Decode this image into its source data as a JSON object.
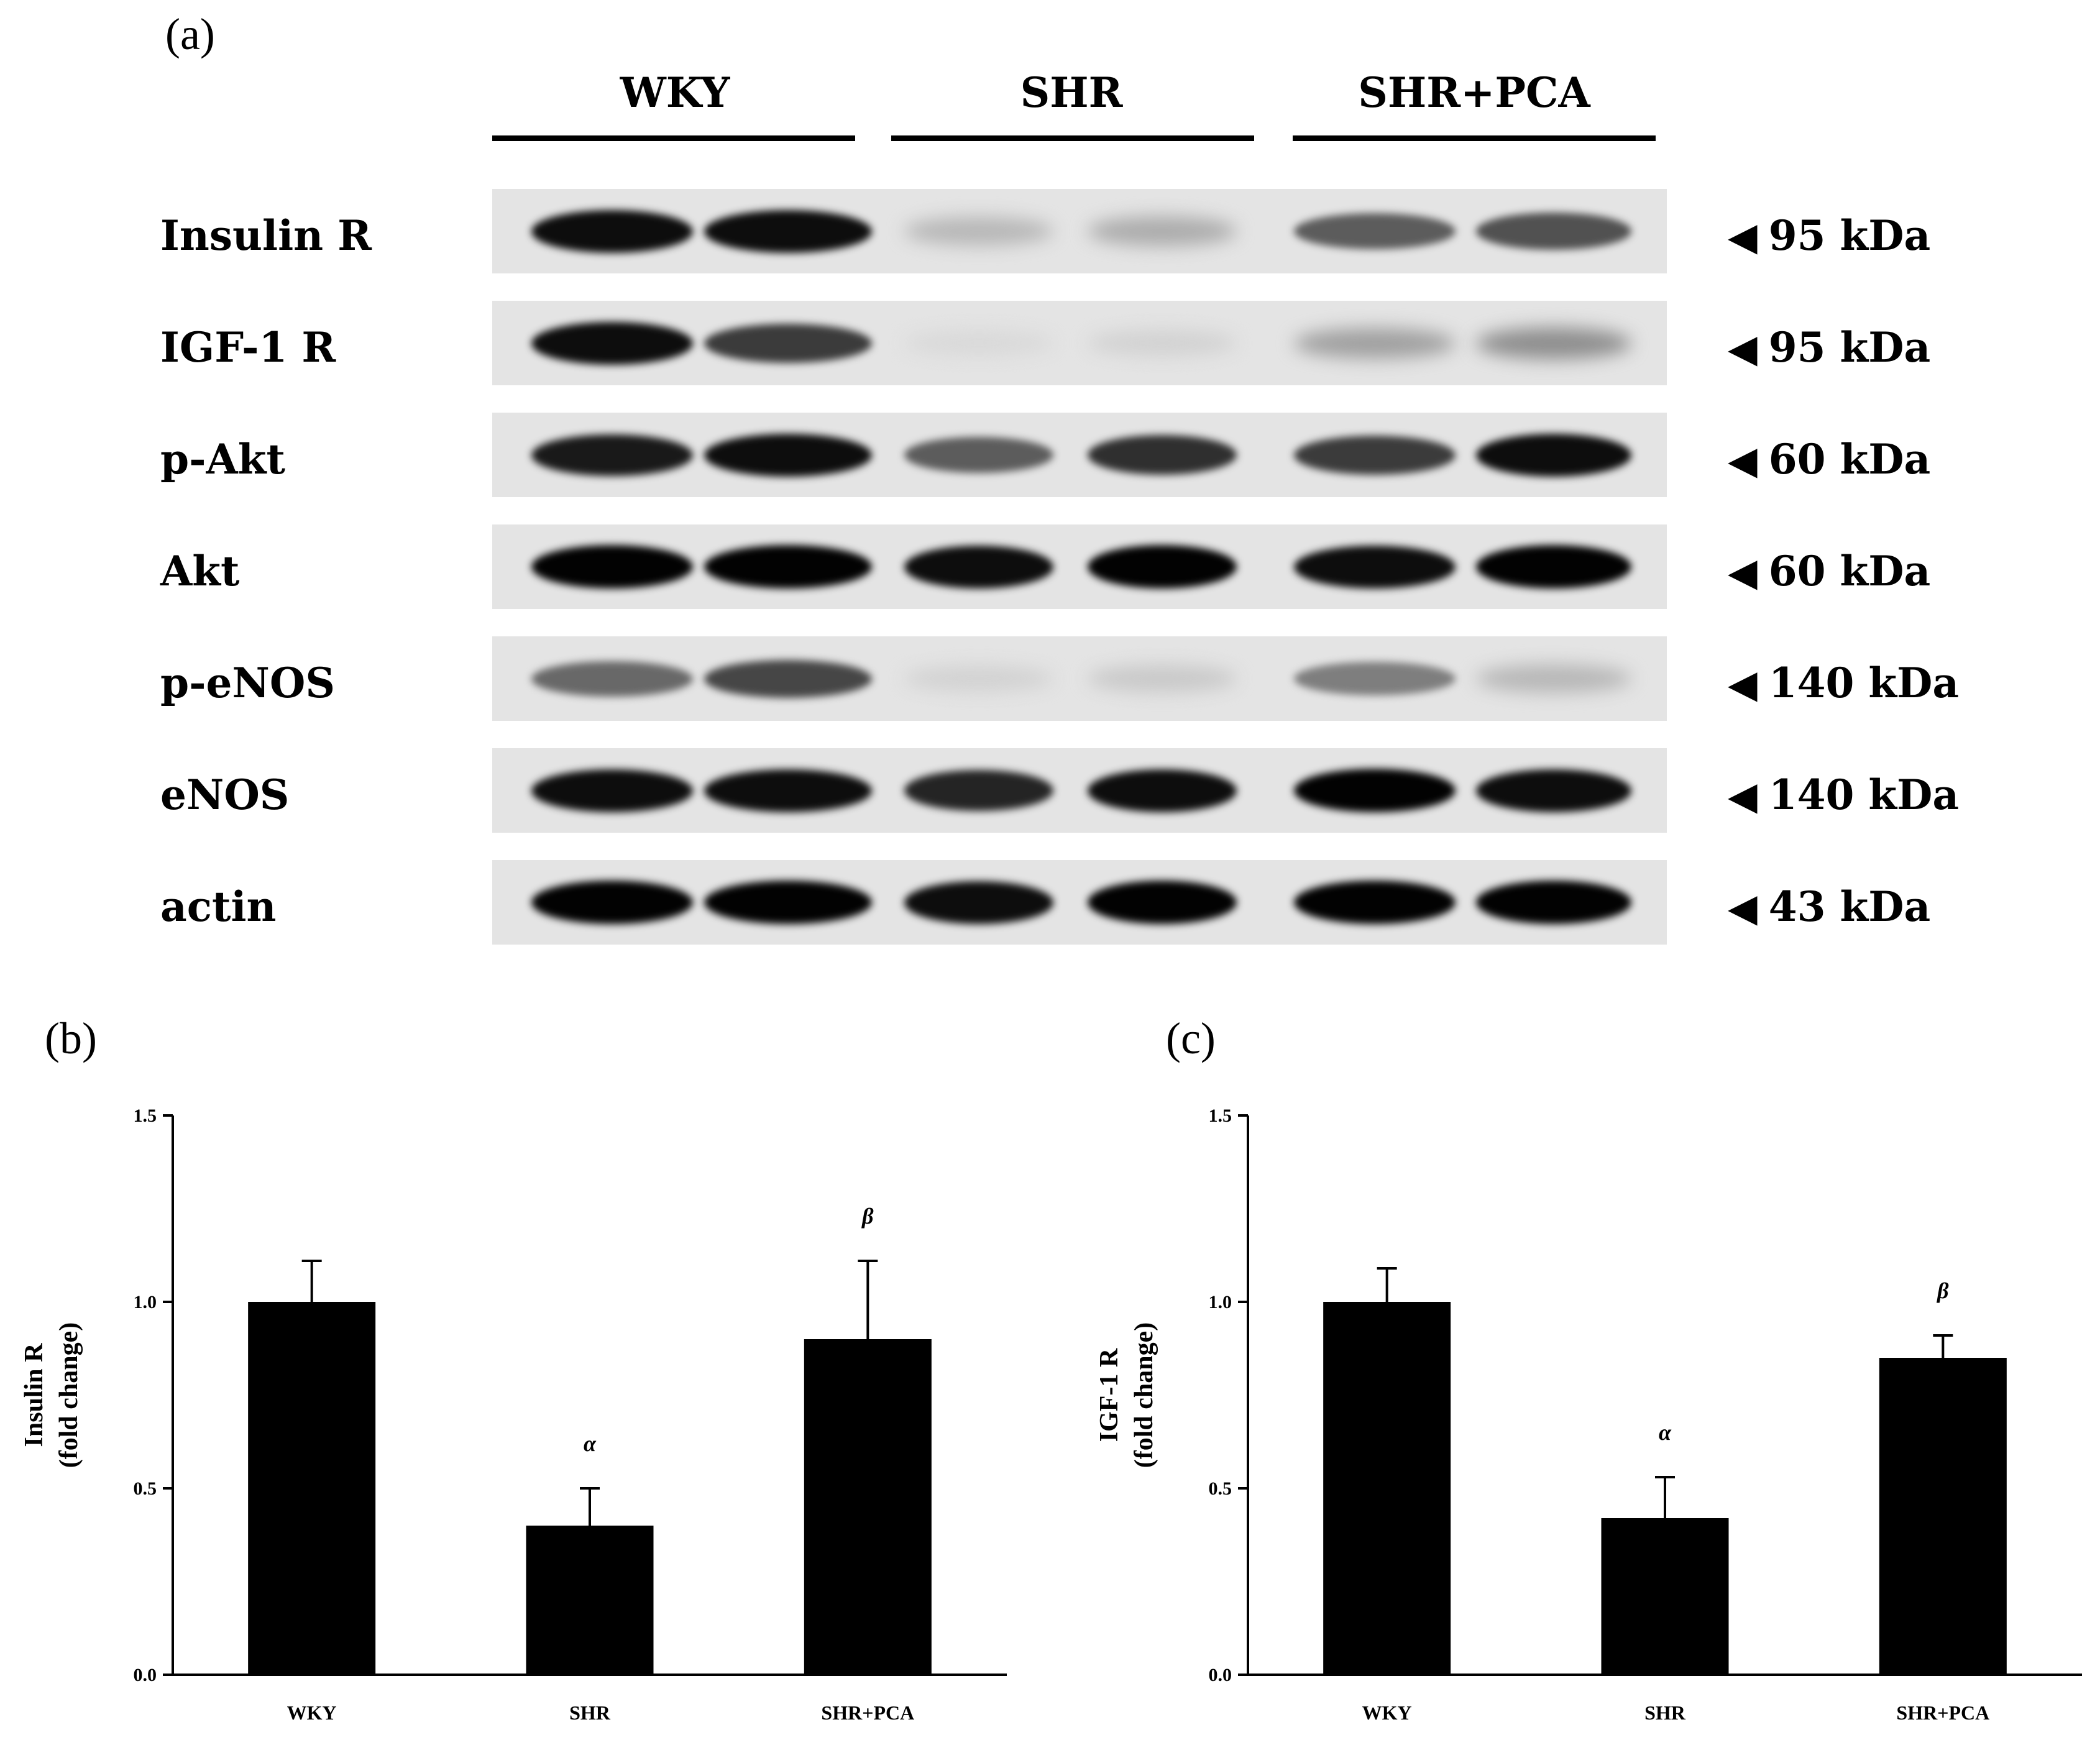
{
  "panel_a": {
    "letter": "(a)",
    "groups": [
      "WKY",
      "SHR",
      "SHR+PCA"
    ],
    "blots": [
      {
        "label": "Insulin R",
        "mw": "95 kDa",
        "band_intensity": [
          0.95,
          0.95,
          0.2,
          0.25,
          0.6,
          0.65
        ]
      },
      {
        "label": "IGF-1 R",
        "mw": "95 kDa",
        "band_intensity": [
          0.95,
          0.75,
          0.05,
          0.08,
          0.3,
          0.38
        ]
      },
      {
        "label": "p-Akt",
        "mw": "60 kDa",
        "band_intensity": [
          0.9,
          0.95,
          0.6,
          0.8,
          0.75,
          0.95
        ]
      },
      {
        "label": "Akt",
        "mw": "60 kDa",
        "band_intensity": [
          1.0,
          1.0,
          0.95,
          1.0,
          0.95,
          1.0
        ]
      },
      {
        "label": "p-eNOS",
        "mw": "140 kDa",
        "band_intensity": [
          0.55,
          0.7,
          0.08,
          0.12,
          0.45,
          0.2
        ]
      },
      {
        "label": "eNOS",
        "mw": "140 kDa",
        "band_intensity": [
          0.95,
          0.95,
          0.85,
          0.95,
          1.0,
          0.95
        ]
      },
      {
        "label": "actin",
        "mw": "43 kDa",
        "band_intensity": [
          1.0,
          1.0,
          0.95,
          1.0,
          1.0,
          1.0
        ]
      }
    ]
  },
  "chart_data": [
    {
      "panel": "(b)",
      "type": "bar",
      "categories": [
        "WKY",
        "SHR",
        "SHR+PCA"
      ],
      "values": [
        1.0,
        0.4,
        0.9
      ],
      "errors": [
        0.11,
        0.1,
        0.21
      ],
      "annotations": [
        "",
        "α",
        "β"
      ],
      "ylabel_line1": "Insulin R",
      "ylabel_line2": "(fold change)",
      "ylim": [
        0.0,
        1.5
      ],
      "yticks": [
        "0.0",
        "0.5",
        "1.0",
        "1.5"
      ],
      "ytick_values": [
        0.0,
        0.5,
        1.0,
        1.5
      ],
      "bar_color": "#000000"
    },
    {
      "panel": "(c)",
      "type": "bar",
      "categories": [
        "WKY",
        "SHR",
        "SHR+PCA"
      ],
      "values": [
        1.0,
        0.42,
        0.85
      ],
      "errors": [
        0.09,
        0.11,
        0.06
      ],
      "annotations": [
        "",
        "α",
        "β"
      ],
      "ylabel_line1": "IGF-1 R",
      "ylabel_line2": "(fold change)",
      "ylim": [
        0.0,
        1.5
      ],
      "yticks": [
        "0.0",
        "0.5",
        "1.0",
        "1.5"
      ],
      "ytick_values": [
        0.0,
        0.5,
        1.0,
        1.5
      ],
      "bar_color": "#000000"
    }
  ]
}
